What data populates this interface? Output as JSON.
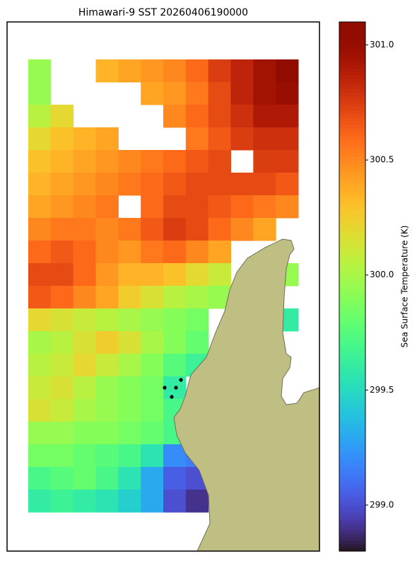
{
  "chart_data": {
    "type": "heatmap",
    "title": "Himawari-9 SST 20260406190000",
    "colorbar_label": "Sea Surface Temperature (K)",
    "colormap": "turbo",
    "clim": [
      298.8,
      301.1
    ],
    "cticks": [
      {
        "value": 299.0,
        "label": "299.0"
      },
      {
        "value": 299.5,
        "label": "299.5"
      },
      {
        "value": 300.0,
        "label": "300.0"
      },
      {
        "value": 300.5,
        "label": "300.5"
      },
      {
        "value": 301.0,
        "label": "301.0"
      }
    ],
    "values": [
      [
        299.95,
        null,
        null,
        300.35,
        300.4,
        300.45,
        300.5,
        300.6,
        300.75,
        300.85,
        300.95,
        301.05
      ],
      [
        299.95,
        null,
        null,
        null,
        null,
        300.4,
        300.45,
        300.55,
        300.7,
        300.85,
        300.95,
        301.0
      ],
      [
        300.05,
        300.2,
        null,
        null,
        null,
        null,
        300.5,
        300.6,
        300.7,
        300.8,
        300.9,
        300.9
      ],
      [
        300.2,
        300.3,
        300.35,
        300.4,
        null,
        null,
        null,
        300.55,
        300.65,
        300.75,
        300.8,
        300.8
      ],
      [
        300.3,
        300.35,
        300.4,
        300.45,
        300.5,
        300.55,
        300.6,
        300.65,
        300.7,
        null,
        300.75,
        300.75
      ],
      [
        300.35,
        300.4,
        300.45,
        300.5,
        300.55,
        300.6,
        300.65,
        300.7,
        300.7,
        300.7,
        300.7,
        300.65
      ],
      [
        300.4,
        300.45,
        300.5,
        300.55,
        null,
        300.6,
        300.7,
        300.7,
        300.65,
        300.6,
        300.55,
        300.5
      ],
      [
        300.5,
        300.55,
        300.55,
        300.5,
        300.55,
        300.65,
        300.75,
        300.7,
        300.6,
        300.5,
        300.4,
        null
      ],
      [
        300.6,
        300.65,
        300.6,
        300.5,
        300.45,
        300.55,
        300.6,
        300.5,
        300.4,
        null,
        null,
        null
      ],
      [
        300.7,
        300.7,
        300.6,
        300.45,
        300.35,
        300.35,
        300.3,
        300.2,
        300.1,
        null,
        null,
        299.95
      ],
      [
        300.65,
        300.6,
        300.5,
        300.4,
        300.25,
        300.15,
        300.05,
        300.0,
        299.95,
        null,
        null,
        null
      ],
      [
        300.2,
        300.15,
        300.1,
        300.05,
        300.0,
        299.95,
        299.9,
        299.85,
        null,
        null,
        null,
        299.6
      ],
      [
        300.0,
        300.05,
        300.15,
        300.25,
        300.15,
        300.0,
        299.9,
        299.8,
        null,
        null,
        null,
        null
      ],
      [
        300.05,
        300.1,
        300.2,
        300.1,
        300.0,
        299.9,
        299.75,
        299.65,
        null,
        null,
        null,
        null
      ],
      [
        300.1,
        300.15,
        300.05,
        299.95,
        299.9,
        299.85,
        299.6,
        null,
        null,
        null,
        null,
        null
      ],
      [
        300.15,
        300.1,
        300.0,
        299.95,
        299.9,
        299.85,
        299.7,
        null,
        null,
        null,
        null,
        null
      ],
      [
        299.95,
        299.95,
        299.9,
        299.9,
        299.85,
        299.8,
        299.7,
        null,
        null,
        null,
        null,
        null
      ],
      [
        299.85,
        299.85,
        299.8,
        299.75,
        299.7,
        299.55,
        299.2,
        299.15,
        null,
        null,
        null,
        null
      ],
      [
        299.7,
        299.75,
        299.8,
        299.7,
        299.55,
        299.3,
        299.05,
        299.0,
        null,
        null,
        null,
        null
      ],
      [
        299.6,
        299.65,
        299.6,
        299.55,
        299.45,
        299.3,
        299.0,
        298.9,
        null,
        null,
        null,
        null
      ]
    ]
  }
}
